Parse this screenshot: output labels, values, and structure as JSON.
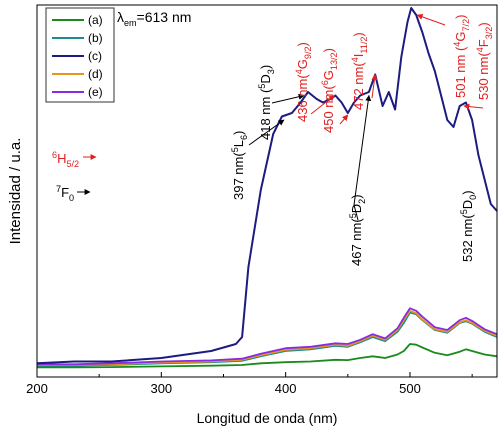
{
  "chart_data": {
    "type": "line",
    "xlabel": "Longitud de onda (nm)",
    "ylabel": "Intensidad / u.a.",
    "xlim": [
      200,
      570
    ],
    "xticks": [
      200,
      300,
      400,
      500
    ],
    "ylim": [
      0,
      1
    ],
    "yticks_visible": false,
    "legend_position": "top-left",
    "colors": {
      "a": "#1a8a1a",
      "b": "#1e8c8c",
      "c": "#1c1c80",
      "d": "#e89420",
      "e": "#8a2be2",
      "annotation_red": "#e02020",
      "annotation_black": "#000000"
    },
    "series": [
      {
        "name": "(a)",
        "x": [
          200,
          230,
          260,
          300,
          340,
          365,
          380,
          400,
          420,
          440,
          450,
          460,
          470,
          480,
          490,
          495,
          500,
          505,
          510,
          520,
          530,
          540,
          545,
          550,
          560,
          570
        ],
        "values": [
          0.013,
          0.013,
          0.014,
          0.016,
          0.018,
          0.02,
          0.025,
          0.028,
          0.03,
          0.035,
          0.034,
          0.04,
          0.045,
          0.04,
          0.05,
          0.06,
          0.08,
          0.078,
          0.07,
          0.055,
          0.048,
          0.058,
          0.065,
          0.06,
          0.05,
          0.045
        ]
      },
      {
        "name": "(b)",
        "x": [
          200,
          230,
          260,
          300,
          340,
          365,
          380,
          400,
          420,
          440,
          450,
          460,
          470,
          480,
          490,
          495,
          500,
          505,
          510,
          520,
          530,
          540,
          545,
          550,
          560,
          570
        ],
        "values": [
          0.018,
          0.018,
          0.02,
          0.025,
          0.028,
          0.032,
          0.045,
          0.06,
          0.065,
          0.075,
          0.072,
          0.085,
          0.1,
          0.088,
          0.115,
          0.14,
          0.17,
          0.165,
          0.148,
          0.12,
          0.112,
          0.14,
          0.145,
          0.138,
          0.115,
          0.1
        ]
      },
      {
        "name": "(c)",
        "x": [
          200,
          230,
          260,
          300,
          340,
          360,
          365,
          370,
          380,
          390,
          397,
          405,
          412,
          418,
          425,
          430,
          436,
          440,
          445,
          450,
          455,
          460,
          467,
          472,
          478,
          483,
          488,
          493,
          498,
          501,
          505,
          510,
          515,
          520,
          525,
          530,
          535,
          540,
          545,
          550,
          555,
          560,
          565,
          570
        ],
        "values": [
          0.025,
          0.03,
          0.03,
          0.04,
          0.06,
          0.08,
          0.1,
          0.3,
          0.52,
          0.68,
          0.73,
          0.74,
          0.77,
          0.8,
          0.78,
          0.77,
          0.78,
          0.79,
          0.77,
          0.74,
          0.77,
          0.79,
          0.8,
          0.85,
          0.76,
          0.8,
          0.75,
          0.9,
          1.0,
          1.04,
          1.02,
          0.97,
          0.91,
          0.86,
          0.79,
          0.72,
          0.7,
          0.76,
          0.77,
          0.72,
          0.62,
          0.55,
          0.48,
          0.46
        ]
      },
      {
        "name": "(d)",
        "x": [
          200,
          230,
          260,
          300,
          340,
          365,
          380,
          400,
          420,
          440,
          450,
          460,
          470,
          480,
          490,
          495,
          500,
          505,
          510,
          520,
          530,
          540,
          545,
          550,
          560,
          570
        ],
        "values": [
          0.02,
          0.02,
          0.022,
          0.027,
          0.03,
          0.035,
          0.048,
          0.063,
          0.068,
          0.078,
          0.075,
          0.088,
          0.104,
          0.092,
          0.12,
          0.148,
          0.175,
          0.168,
          0.15,
          0.122,
          0.115,
          0.142,
          0.148,
          0.14,
          0.118,
          0.103
        ]
      },
      {
        "name": "(e)",
        "x": [
          200,
          230,
          260,
          300,
          340,
          365,
          380,
          400,
          420,
          440,
          450,
          460,
          470,
          480,
          490,
          495,
          500,
          505,
          510,
          520,
          530,
          540,
          545,
          550,
          560,
          570
        ],
        "values": [
          0.022,
          0.022,
          0.025,
          0.03,
          0.033,
          0.038,
          0.052,
          0.068,
          0.072,
          0.082,
          0.08,
          0.092,
          0.108,
          0.096,
          0.125,
          0.155,
          0.182,
          0.175,
          0.158,
          0.128,
          0.12,
          0.148,
          0.155,
          0.146,
          0.122,
          0.108
        ]
      }
    ],
    "legend_title": "λ",
    "legend_title_sub": "em",
    "legend_title_rest": "=613 nm",
    "annotations": [
      {
        "id": "397",
        "color": "black",
        "x": 397,
        "text": "397 nm(",
        "sup": "5",
        "term": "L",
        "sub": "6",
        "close": ")"
      },
      {
        "id": "418",
        "color": "black",
        "x": 418,
        "text": "418 nm (",
        "sup": "5",
        "term": "D",
        "sub": "3",
        "close": ")"
      },
      {
        "id": "436",
        "color": "red",
        "x": 436,
        "text": "436 nm(",
        "sup": "4",
        "term": "G",
        "sub": "9/2",
        "close": ")"
      },
      {
        "id": "450",
        "color": "red",
        "x": 450,
        "text": "450 nm(",
        "sup": "6",
        "term": "G",
        "sub": "13/2",
        "close": ")"
      },
      {
        "id": "472",
        "color": "red",
        "x": 472,
        "text": "472 nm(",
        "sup": "4",
        "term": "I",
        "sub": "11/2",
        "close": ")"
      },
      {
        "id": "467",
        "color": "black",
        "x": 467,
        "text": "467 nm(",
        "sup": "5",
        "term": "D",
        "sub": "2",
        "close": ")"
      },
      {
        "id": "501",
        "color": "red",
        "x": 501,
        "text": "501 nm (",
        "sup": "4",
        "term": "G",
        "sub": "7/2",
        "close": ")"
      },
      {
        "id": "530",
        "color": "red",
        "x": 530,
        "text": "530 nm(",
        "sup": "4",
        "term": "F",
        "sub": "3/2",
        "close": ")"
      },
      {
        "id": "532",
        "color": "black",
        "x": 532,
        "text": "532 nm(",
        "sup": "5",
        "term": "D",
        "sub": "0",
        "close": ")"
      }
    ],
    "side_labels": [
      {
        "id": "6H",
        "color": "red",
        "sup": "6",
        "term": "H",
        "sub": "5/2"
      },
      {
        "id": "7F",
        "color": "black",
        "sup": "7",
        "term": "F",
        "sub": "0"
      }
    ]
  }
}
